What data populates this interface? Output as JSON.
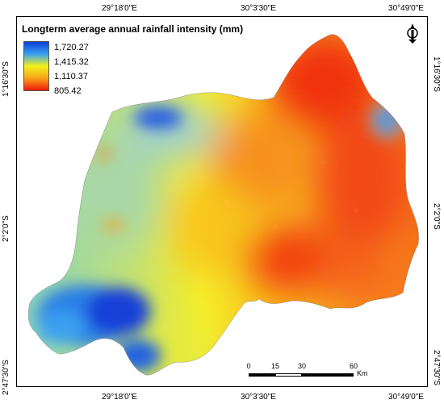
{
  "map": {
    "legend": {
      "title": "Longterm average annual rainfall intensity (mm)",
      "labels": [
        "1,720.27",
        "1,415.32",
        "1,110.37",
        "805.42"
      ],
      "ramp_colors": [
        "#0a3fd6",
        "#3aa0f0",
        "#f2f21a",
        "#f7a21a",
        "#f01a0a"
      ]
    },
    "axes": {
      "top": [
        "29°18'0\"E",
        "30°3'30\"E",
        "30°49'0\"E"
      ],
      "bottom": [
        "29°18'0\"E",
        "30°3'30\"E",
        "30°49'0\"E"
      ],
      "left": [
        "1°16'30\"S",
        "2°2'0\"S",
        "2°47'30\"S"
      ],
      "right": [
        "1°16'30\"S",
        "2°2'0\"S",
        "2°47'30\"S"
      ]
    },
    "scale_bar": {
      "ticks": [
        "0",
        "15",
        "30",
        "60"
      ],
      "unit": "Km"
    },
    "north_arrow_icon": "north-arrow-icon"
  }
}
